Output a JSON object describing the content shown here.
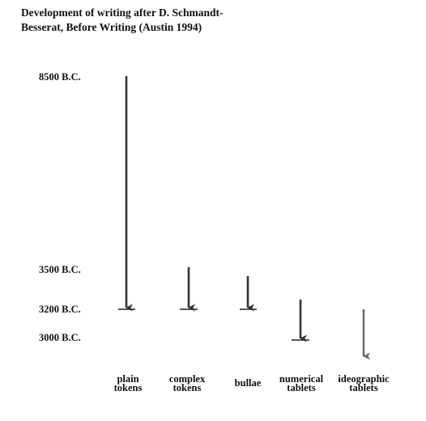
{
  "title": {
    "line1": "Development of writing after D. Schmandt-",
    "line2": "Besserat, Before Writing (Austin 1994)"
  },
  "dates": [
    {
      "label": "8500 B.C."
    },
    {
      "label": "3500 B.C."
    },
    {
      "label": "3200 B.C."
    },
    {
      "label": "3000 B.C."
    }
  ],
  "categories": [
    {
      "label_lines": [
        "plain",
        "tokens"
      ],
      "arrow_color": "#333333",
      "end_bar": true
    },
    {
      "label_lines": [
        "complex",
        "tokens"
      ],
      "arrow_color": "#333333",
      "end_bar": true
    },
    {
      "label_lines": [
        "bullae"
      ],
      "arrow_color": "#333333",
      "end_bar": true
    },
    {
      "label_lines": [
        "numerical",
        "tablets"
      ],
      "arrow_color": "#333333",
      "end_bar": true
    },
    {
      "label_lines": [
        "ideographic",
        "tablets"
      ],
      "arrow_color": "#666666",
      "end_bar": false
    }
  ]
}
